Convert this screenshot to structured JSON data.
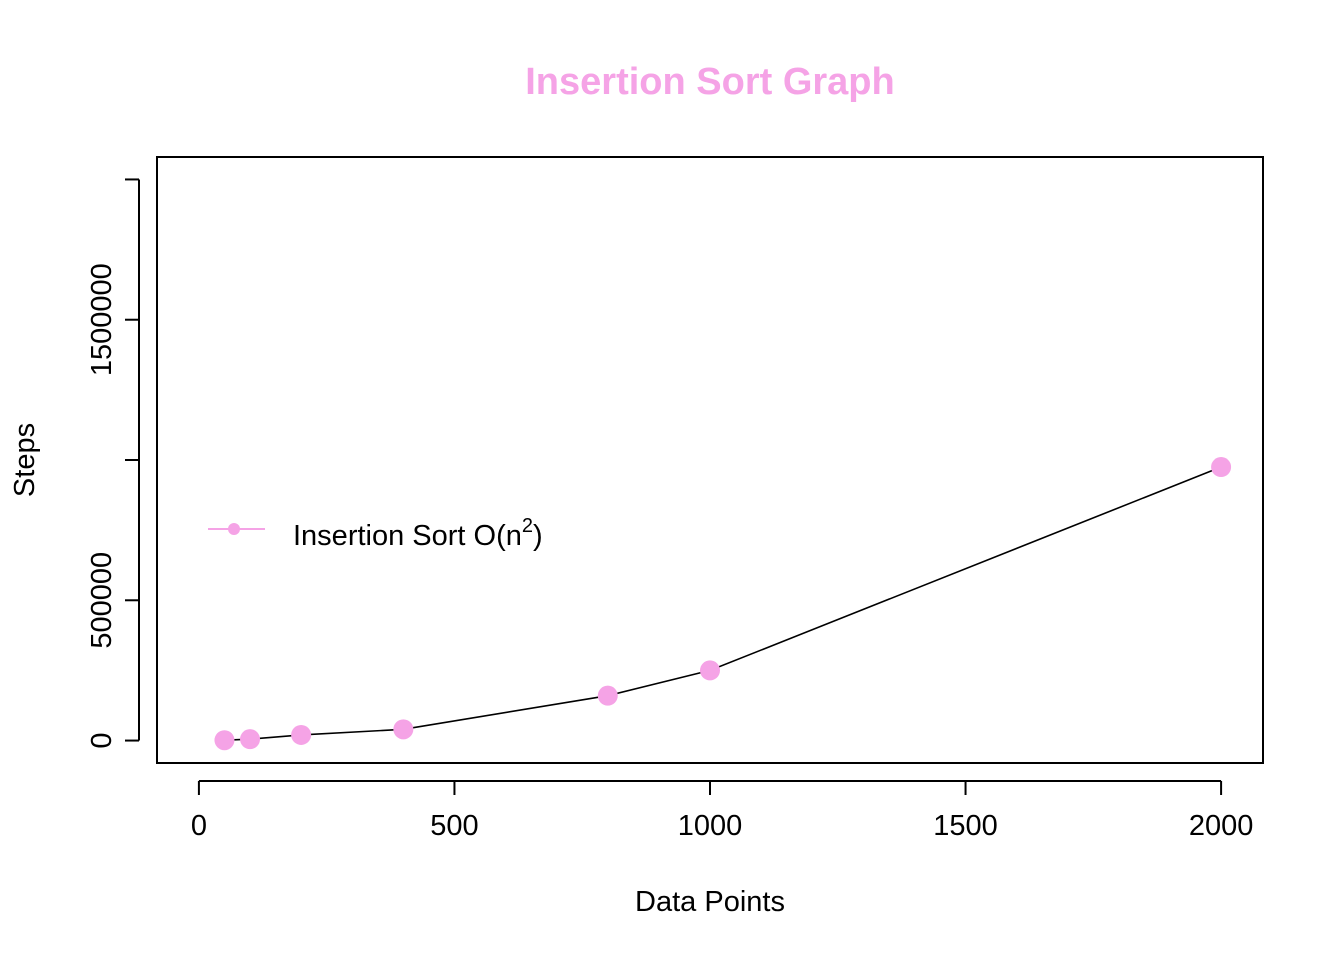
{
  "chart_data": {
    "type": "line",
    "title": "Insertion Sort Graph",
    "xlabel": "Data Points",
    "ylabel": "Steps",
    "xlim": [
      -82,
      2082
    ],
    "ylim": [
      -80000,
      2080000
    ],
    "x_ticks": [
      0,
      500,
      1000,
      1500,
      2000
    ],
    "x_tick_labels": [
      "0",
      "500",
      "1000",
      "1500",
      "2000"
    ],
    "y_ticks": [
      0,
      500000,
      1000000,
      1500000,
      2000000
    ],
    "y_tick_labels": [
      "0",
      "500000",
      "",
      "1500000",
      ""
    ],
    "grid": false,
    "legend_position": "left",
    "series": [
      {
        "name": "Insertion Sort O(n^2)",
        "legend_text": "Insertion Sort O(",
        "legend_base": "n",
        "legend_sup": "2",
        "legend_close": ")",
        "x": [
          50,
          100,
          200,
          400,
          800,
          1000,
          2000
        ],
        "y": [
          1250,
          5000,
          20000,
          40000,
          160000,
          250000,
          975000
        ],
        "marker_color": "#f5a3e6",
        "line_color": "#000000"
      }
    ]
  },
  "colors": {
    "title": "#f5a3e6",
    "marker": "#f5a3e6",
    "line": "#000000"
  }
}
